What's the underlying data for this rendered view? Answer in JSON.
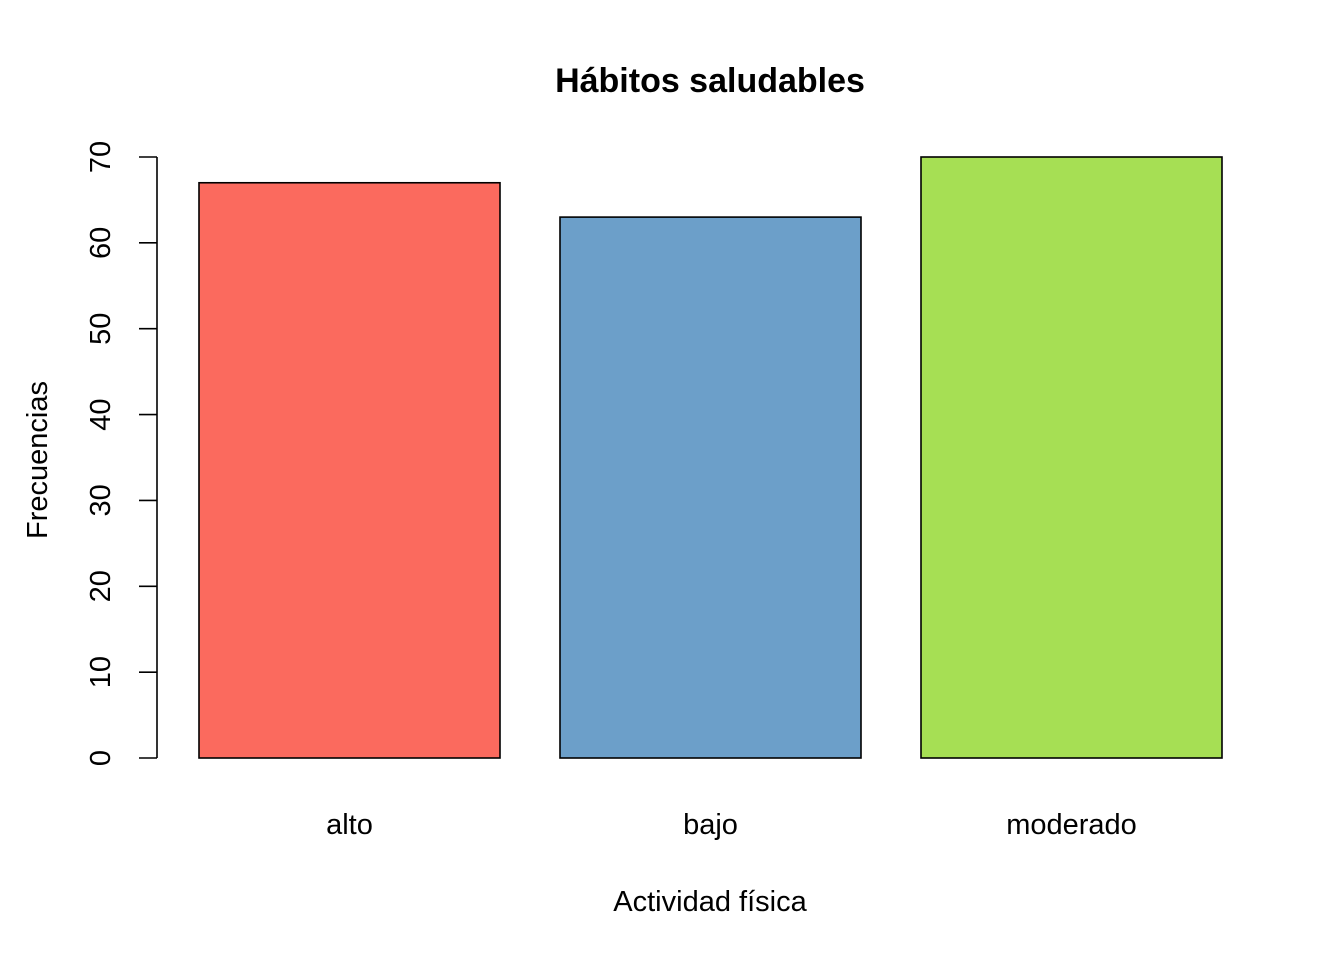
{
  "chart_data": {
    "type": "bar",
    "title": "Hábitos saludables",
    "xlabel": "Actividad física",
    "ylabel": "Frecuencias",
    "categories": [
      "alto",
      "bajo",
      "moderado"
    ],
    "values": [
      67,
      63,
      70
    ],
    "colors": [
      "#FB6A5E",
      "#6C9FC9",
      "#A6DF54"
    ],
    "ylim": [
      0,
      70
    ],
    "yticks": [
      0,
      10,
      20,
      30,
      40,
      50,
      60,
      70
    ],
    "grid": false,
    "legend": "none"
  }
}
